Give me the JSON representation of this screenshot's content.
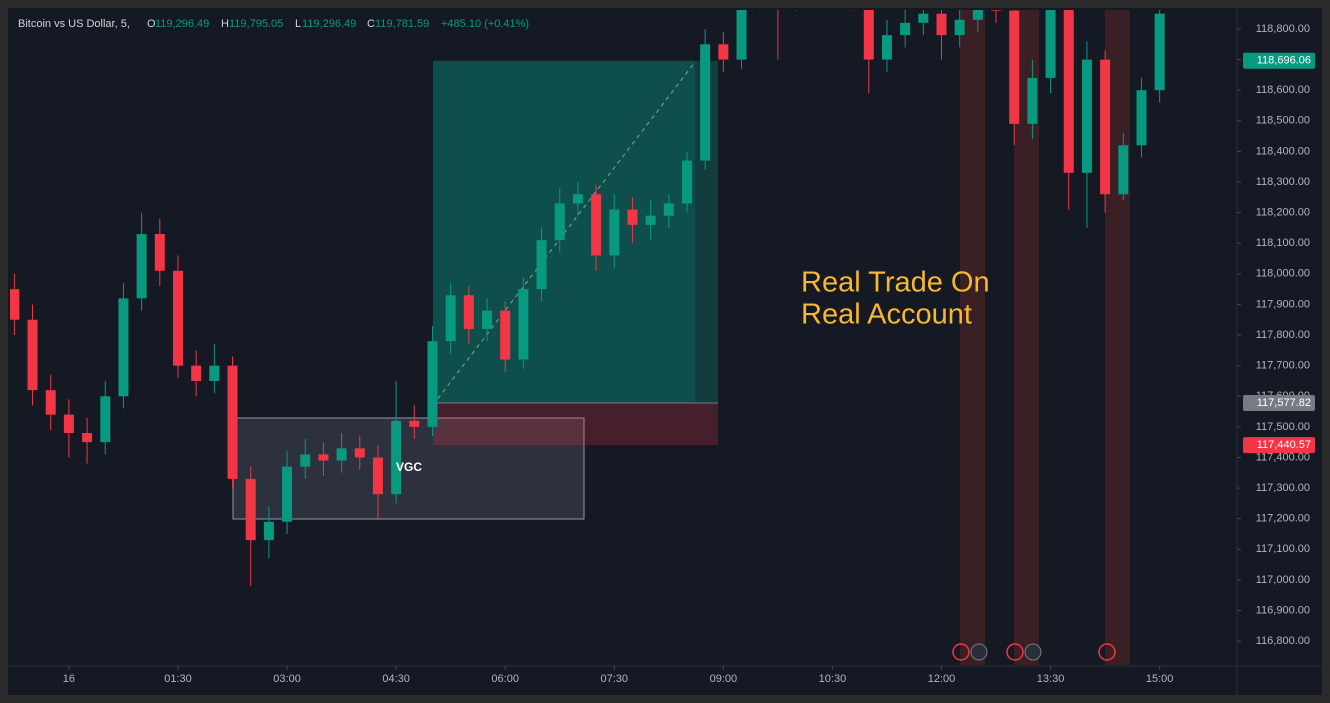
{
  "header": {
    "symbol": "Bitcoin vs US Dollar, 5,",
    "ohlc": [
      {
        "letter": "O",
        "value": "119,296.49"
      },
      {
        "letter": "H",
        "value": "119,795.05"
      },
      {
        "letter": "L",
        "value": "119,296.49"
      },
      {
        "letter": "C",
        "value": "119,781.59"
      }
    ],
    "change": "+485.10 (+0.41%)"
  },
  "chart_data": {
    "type": "candlestick",
    "annotations": {
      "headline": [
        "Real Trade On",
        "Real Account"
      ],
      "zone": "VGC"
    },
    "x": [
      -0.75,
      -0.5,
      -0.25,
      0,
      0.25,
      0.5,
      0.75,
      1,
      1.25,
      1.5,
      1.75,
      2,
      2.25,
      2.5,
      2.75,
      3,
      3.25,
      3.5,
      3.75,
      4,
      4.25,
      4.5,
      4.75,
      5,
      5.25,
      5.5,
      5.75,
      6,
      6.25,
      6.5,
      6.75,
      7,
      7.25,
      7.5,
      7.75,
      8,
      8.25,
      8.5,
      8.75,
      9,
      9.25,
      9.5,
      9.75,
      10,
      10.25,
      10.5,
      10.75,
      11,
      11.25,
      11.5,
      11.75,
      12,
      12.25,
      12.5,
      12.75,
      13,
      13.25,
      13.5,
      13.75,
      14,
      14.25,
      14.5,
      14.75,
      15
    ],
    "series": [
      {
        "up_color": "#089981",
        "down_color": "#f23645",
        "open": [
          117950,
          117850,
          117620,
          117540,
          117480,
          117450,
          117600,
          117920,
          118130,
          118010,
          117700,
          117650,
          117700,
          117330,
          117130,
          117190,
          117370,
          117410,
          117390,
          117430,
          117400,
          117280,
          117520,
          117500,
          117780,
          117930,
          117820,
          117880,
          117720,
          117950,
          118110,
          118230,
          118260,
          118060,
          118210,
          118160,
          118190,
          118230,
          118370,
          118750,
          118700,
          118900,
          118950,
          118900,
          118980,
          119000,
          118950,
          118900,
          118700,
          118780,
          118820,
          118850,
          118780,
          118830,
          118900,
          118860,
          118490,
          118640,
          118880,
          118330,
          118700,
          118260,
          118420,
          118600
        ],
        "high": [
          118000,
          117900,
          117670,
          117590,
          117530,
          117650,
          117970,
          118200,
          118180,
          118060,
          117750,
          117770,
          117730,
          117370,
          117240,
          117420,
          117460,
          117450,
          117480,
          117470,
          117440,
          117650,
          117570,
          117830,
          117970,
          117960,
          117920,
          117910,
          117990,
          118150,
          118280,
          118300,
          118290,
          118260,
          118250,
          118240,
          118260,
          118400,
          118800,
          118790,
          118950,
          119000,
          119000,
          119020,
          119050,
          119040,
          119000,
          118950,
          118830,
          118870,
          118900,
          118890,
          118870,
          118940,
          118940,
          118900,
          118700,
          118920,
          118920,
          118760,
          118730,
          118460,
          118640,
          118890
        ],
        "low": [
          117800,
          117570,
          117490,
          117400,
          117380,
          117410,
          117560,
          117880,
          117960,
          117660,
          117600,
          117610,
          117300,
          116980,
          117070,
          117150,
          117330,
          117340,
          117350,
          117360,
          117200,
          117250,
          117460,
          117470,
          117740,
          117770,
          117780,
          117680,
          117690,
          117910,
          118070,
          118190,
          118010,
          118020,
          118100,
          118110,
          118150,
          118200,
          118340,
          118660,
          118670,
          118860,
          118700,
          118860,
          118940,
          118910,
          118860,
          118590,
          118660,
          118740,
          118780,
          118700,
          118740,
          118790,
          118820,
          118420,
          118440,
          118590,
          118210,
          118150,
          118200,
          118240,
          118380,
          118560
        ],
        "close": [
          117850,
          117620,
          117540,
          117480,
          117450,
          117600,
          117920,
          118130,
          118010,
          117700,
          117650,
          117700,
          117330,
          117130,
          117190,
          117370,
          117410,
          117390,
          117430,
          117400,
          117280,
          117520,
          117500,
          117780,
          117930,
          117820,
          117880,
          117720,
          117950,
          118110,
          118230,
          118260,
          118060,
          118210,
          118160,
          118190,
          118230,
          118370,
          118750,
          118700,
          118900,
          118950,
          118900,
          118980,
          119000,
          118950,
          118900,
          118700,
          118780,
          118820,
          118850,
          118780,
          118830,
          118900,
          118860,
          118490,
          118640,
          118880,
          118330,
          118700,
          118260,
          118420,
          118600,
          118850
        ]
      }
    ],
    "levels": [
      {
        "value": 118696.06,
        "label": "118,696.06",
        "color": "#089981"
      },
      {
        "value": 117577.82,
        "label": "117,577.82",
        "color": "#787b86"
      },
      {
        "value": 117440.57,
        "label": "117,440.57",
        "color": "#f23645"
      }
    ],
    "xlim": [
      -0.81,
      16.05
    ],
    "ylim": [
      116722,
      118862
    ],
    "xticks": [
      {
        "value": 0,
        "label": "16"
      },
      {
        "value": 1.5,
        "label": "01:30"
      },
      {
        "value": 3,
        "label": "03:00"
      },
      {
        "value": 4.5,
        "label": "04:30"
      },
      {
        "value": 6,
        "label": "06:00"
      },
      {
        "value": 7.5,
        "label": "07:30"
      },
      {
        "value": 9,
        "label": "09:00"
      },
      {
        "value": 10.5,
        "label": "10:30"
      },
      {
        "value": 12,
        "label": "12:00"
      },
      {
        "value": 13.5,
        "label": "13:30"
      },
      {
        "value": 15,
        "label": "15:00"
      }
    ],
    "yticks": [
      {
        "value": 116800,
        "label": "116,800.00"
      },
      {
        "value": 116900,
        "label": "116,900.00"
      },
      {
        "value": 117000,
        "label": "117,000.00"
      },
      {
        "value": 117100,
        "label": "117,100.00"
      },
      {
        "value": 117200,
        "label": "117,200.00"
      },
      {
        "value": 117300,
        "label": "117,300.00"
      },
      {
        "value": 117400,
        "label": "117,400.00"
      },
      {
        "value": 117500,
        "label": "117,500.00"
      },
      {
        "value": 117600,
        "label": "117,600.00"
      },
      {
        "value": 117700,
        "label": "117,700.00"
      },
      {
        "value": 117800,
        "label": "117,800.00"
      },
      {
        "value": 117900,
        "label": "117,900.00"
      },
      {
        "value": 118000,
        "label": "118,000.00"
      },
      {
        "value": 118100,
        "label": "118,100.00"
      },
      {
        "value": 118200,
        "label": "118,200.00"
      },
      {
        "value": 118300,
        "label": "118,300.00"
      },
      {
        "value": 118400,
        "label": "118,400.00"
      },
      {
        "value": 118500,
        "label": "118,500.00"
      },
      {
        "value": 118600,
        "label": "118,600.00"
      },
      {
        "value": 118700,
        "label": "118,700.00"
      },
      {
        "value": 118800,
        "label": "118,800.00"
      }
    ],
    "grid": false
  }
}
